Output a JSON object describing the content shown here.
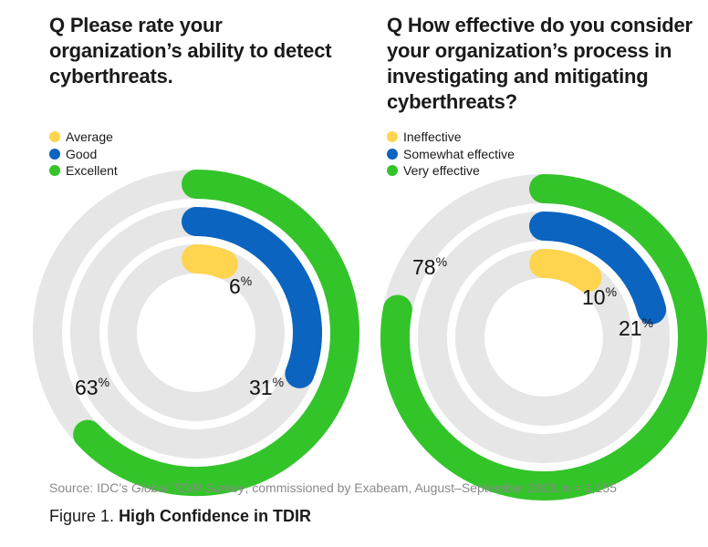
{
  "colors": {
    "track": "#e6e6e6",
    "average": "#ffd44f",
    "good": "#0a64c0",
    "excellent": "#33c42a"
  },
  "chart_data": [
    {
      "type": "radial-bar",
      "title": "Q Please rate your organization’s ability to detect cyberthreats.",
      "legend": [
        "Average",
        "Good",
        "Excellent"
      ],
      "series": [
        {
          "name": "Average",
          "value": 6,
          "label": "6",
          "color": "#ffd44f"
        },
        {
          "name": "Good",
          "value": 31,
          "label": "31",
          "color": "#0a64c0"
        },
        {
          "name": "Excellent",
          "value": 63,
          "label": "63",
          "color": "#33c42a"
        }
      ],
      "unit": "%",
      "max": 100
    },
    {
      "type": "radial-bar",
      "title": "Q How effective do you consider your organization’s process in investigating and mitigating cyberthreats?",
      "legend": [
        "Ineffective",
        "Somewhat effective",
        "Very effective"
      ],
      "series": [
        {
          "name": "Ineffective",
          "value": 10,
          "label": "10",
          "color": "#ffd44f"
        },
        {
          "name": "Somewhat effective",
          "value": 21,
          "label": "21",
          "color": "#0a64c0"
        },
        {
          "name": "Very effective",
          "value": 78,
          "label": "78",
          "color": "#33c42a"
        }
      ],
      "unit": "%",
      "max": 100
    }
  ],
  "source": {
    "prefix": "Source: IDC’s ",
    "italic": "Global TDIR Survey",
    "suffix": ", commissioned by Exabeam, August–September 2023, n = 1,155"
  },
  "figure": {
    "label": "Figure 1.",
    "title": "High Confidence in TDIR"
  }
}
